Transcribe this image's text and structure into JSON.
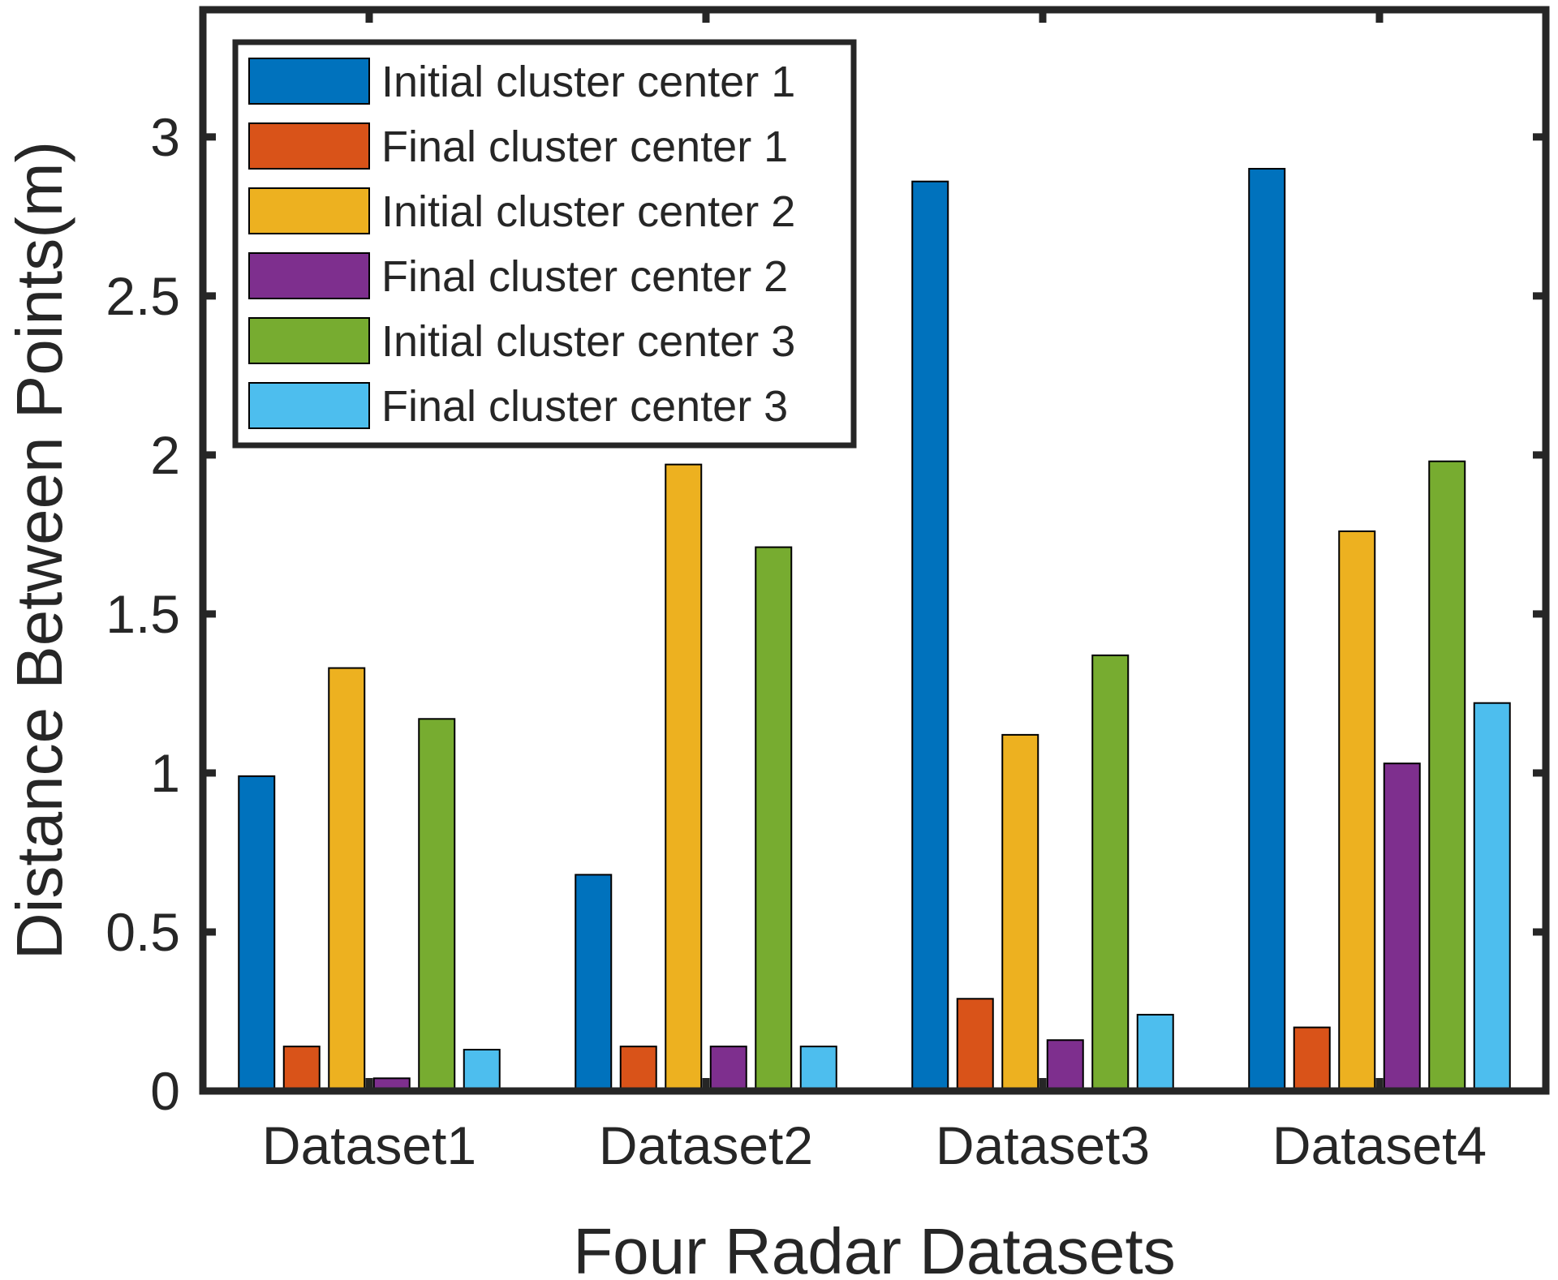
{
  "chart_data": {
    "type": "bar",
    "title": "",
    "xlabel": "Four Radar Datasets",
    "ylabel": "Distance Between Points(m)",
    "categories": [
      "Dataset1",
      "Dataset2",
      "Dataset3",
      "Dataset4"
    ],
    "ylim": [
      0,
      3.4
    ],
    "yticks": [
      0,
      0.5,
      1,
      1.5,
      2,
      2.5,
      3
    ],
    "ytick_labels": [
      "0",
      "0.5",
      "1",
      "1.5",
      "2",
      "2.5",
      "3"
    ],
    "grid": false,
    "legend_position": "top-left",
    "series": [
      {
        "name": "Initial cluster center 1",
        "color": "#0072BD",
        "values": [
          0.99,
          0.68,
          2.86,
          2.9
        ]
      },
      {
        "name": "Final cluster center 1",
        "color": "#D95319",
        "values": [
          0.14,
          0.14,
          0.29,
          0.2
        ]
      },
      {
        "name": "Initial cluster center 2",
        "color": "#EDB120",
        "values": [
          1.33,
          1.97,
          1.12,
          1.76
        ]
      },
      {
        "name": "Final cluster center 2",
        "color": "#7E2F8E",
        "values": [
          0.04,
          0.14,
          0.16,
          1.03
        ]
      },
      {
        "name": "Initial cluster center 3",
        "color": "#77AC30",
        "values": [
          1.17,
          1.71,
          1.37,
          1.98
        ]
      },
      {
        "name": "Final cluster center 3",
        "color": "#4DBEEE",
        "values": [
          0.13,
          0.14,
          0.24,
          1.22
        ]
      }
    ]
  }
}
